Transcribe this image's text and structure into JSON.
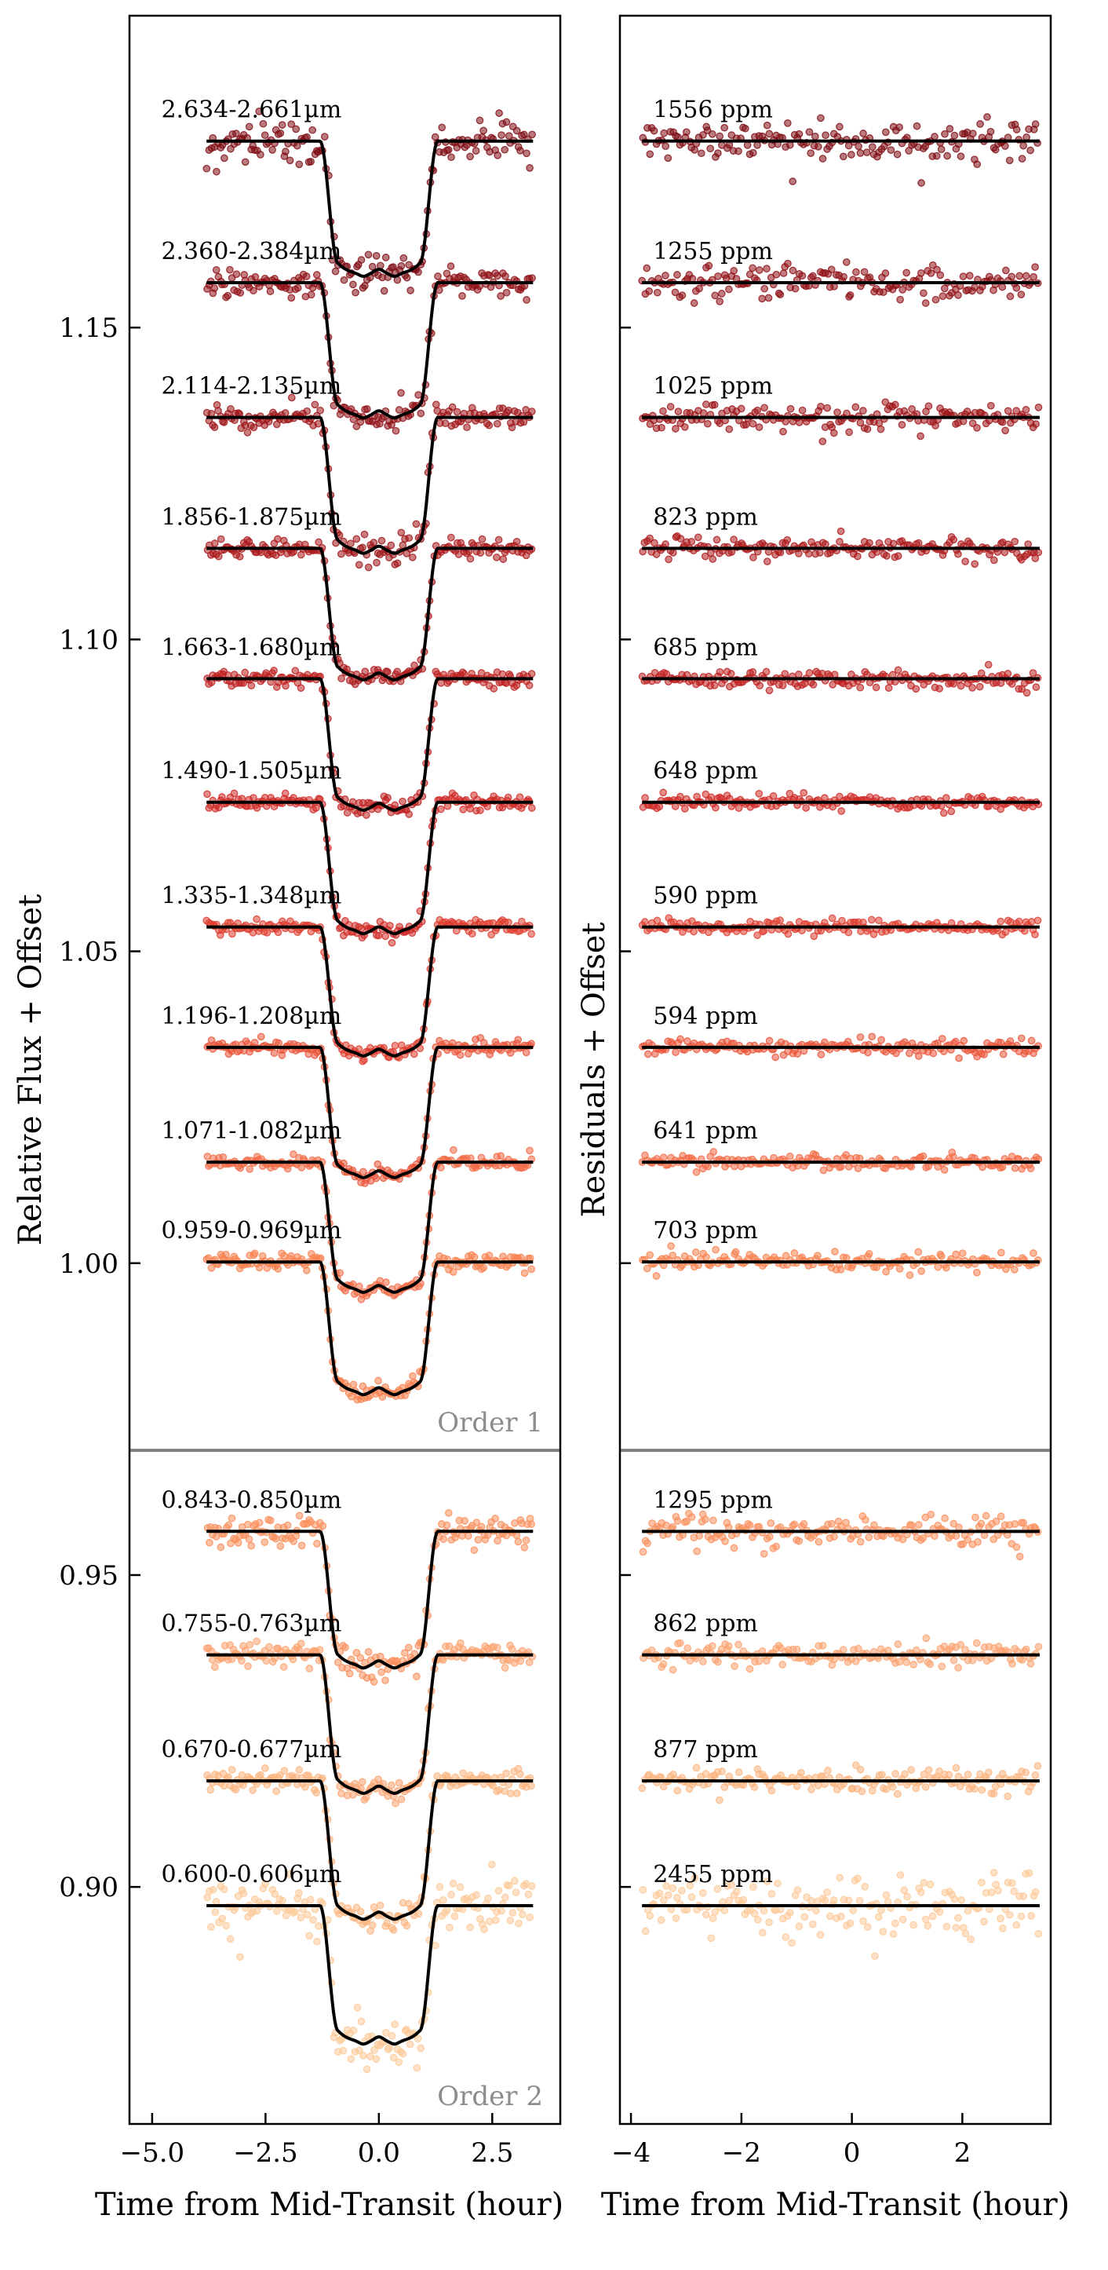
{
  "chart_data": {
    "type": "scatter",
    "description_free": true,
    "left_panel": {
      "ylabel": "Relative Flux + Offset",
      "xlabel": "Time from Mid-Transit (hour)",
      "xlim": [
        -5.5,
        4.0
      ],
      "ylim": [
        0.862,
        1.2
      ],
      "xticks": [
        -5.0,
        -2.5,
        0.0,
        2.5
      ],
      "xtick_labels": [
        "−5.0",
        "−2.5",
        "0.0",
        "2.5"
      ],
      "yticks": [
        0.9,
        0.95,
        1.0,
        1.05,
        1.1,
        1.15
      ],
      "ytick_labels": [
        "0.90",
        "0.95",
        "1.00",
        "1.05",
        "1.10",
        "1.15"
      ],
      "order_divider": 0.97
    },
    "right_panel": {
      "ylabel": "Residuals + Offset",
      "xlabel": "Time from Mid-Transit (hour)",
      "xlim": [
        -4.2,
        3.6
      ],
      "xticks": [
        -4,
        -2,
        0,
        2
      ],
      "xtick_labels": [
        "−4",
        "−2",
        "0",
        "2"
      ],
      "yticks": [
        0.9,
        0.95,
        1.0,
        1.05,
        1.1,
        1.15
      ]
    },
    "orders": [
      {
        "name": "Order 1",
        "ymin_divider": 0.97
      },
      {
        "name": "Order 2"
      }
    ],
    "transit": {
      "t_start": -3.8,
      "t_end": 3.4,
      "ingress_begin": -1.3,
      "ingress_end": -0.9,
      "egress_begin": 0.9,
      "egress_end": 1.3
    },
    "series": [
      {
        "band": "2.634-2.661µm",
        "rms": "1556 ppm",
        "baseline": 1.1799,
        "depth": 0.0213,
        "scatter": 0.0016,
        "color": "#7f0c14",
        "order": 1
      },
      {
        "band": "2.360-2.384µm",
        "rms": "1255 ppm",
        "baseline": 1.1572,
        "depth": 0.0213,
        "scatter": 0.0013,
        "color": "#8f1016",
        "order": 1
      },
      {
        "band": "2.114-2.135µm",
        "rms": "1025 ppm",
        "baseline": 1.1356,
        "depth": 0.0214,
        "scatter": 0.001,
        "color": "#9e1418",
        "order": 1
      },
      {
        "band": "1.856-1.875µm",
        "rms": "823 ppm",
        "baseline": 1.1146,
        "depth": 0.0207,
        "scatter": 0.0008,
        "color": "#ad191b",
        "order": 1
      },
      {
        "band": "1.663-1.680µm",
        "rms": "685 ppm",
        "baseline": 1.0937,
        "depth": 0.0207,
        "scatter": 0.0007,
        "color": "#bf2020",
        "order": 1
      },
      {
        "band": "1.490-1.505µm",
        "rms": "648 ppm",
        "baseline": 1.0739,
        "depth": 0.0207,
        "scatter": 0.0006,
        "color": "#cf2b27",
        "order": 1
      },
      {
        "band": "1.335-1.348µm",
        "rms": "590 ppm",
        "baseline": 1.0539,
        "depth": 0.0203,
        "scatter": 0.0006,
        "color": "#de3c2e",
        "order": 1
      },
      {
        "band": "1.196-1.208µm",
        "rms": "594 ppm",
        "baseline": 1.0346,
        "depth": 0.0205,
        "scatter": 0.0006,
        "color": "#ea553a",
        "order": 1
      },
      {
        "band": "1.071-1.082µm",
        "rms": "641 ppm",
        "baseline": 1.0162,
        "depth": 0.0205,
        "scatter": 0.0006,
        "color": "#f26b47",
        "order": 1
      },
      {
        "band": "0.959-0.969µm",
        "rms": "703 ppm",
        "baseline": 1.0002,
        "depth": 0.0209,
        "scatter": 0.0007,
        "color": "#f7814f",
        "order": 1
      },
      {
        "band": "0.843-0.850µm",
        "rms": "1295 ppm",
        "baseline": 0.957,
        "depth": 0.0215,
        "scatter": 0.0013,
        "color": "#fa8f5c",
        "order": 2
      },
      {
        "band": "0.755-0.763µm",
        "rms": "862 ppm",
        "baseline": 0.9372,
        "depth": 0.0218,
        "scatter": 0.0009,
        "color": "#fba36f",
        "order": 2
      },
      {
        "band": "0.670-0.677µm",
        "rms": "877 ppm",
        "baseline": 0.917,
        "depth": 0.0218,
        "scatter": 0.0009,
        "color": "#fcb57f",
        "order": 2
      },
      {
        "band": "0.600-0.606µm",
        "rms": "2455 ppm",
        "baseline": 0.897,
        "depth": 0.0218,
        "scatter": 0.0025,
        "color": "#fdc997",
        "order": 2
      }
    ]
  }
}
